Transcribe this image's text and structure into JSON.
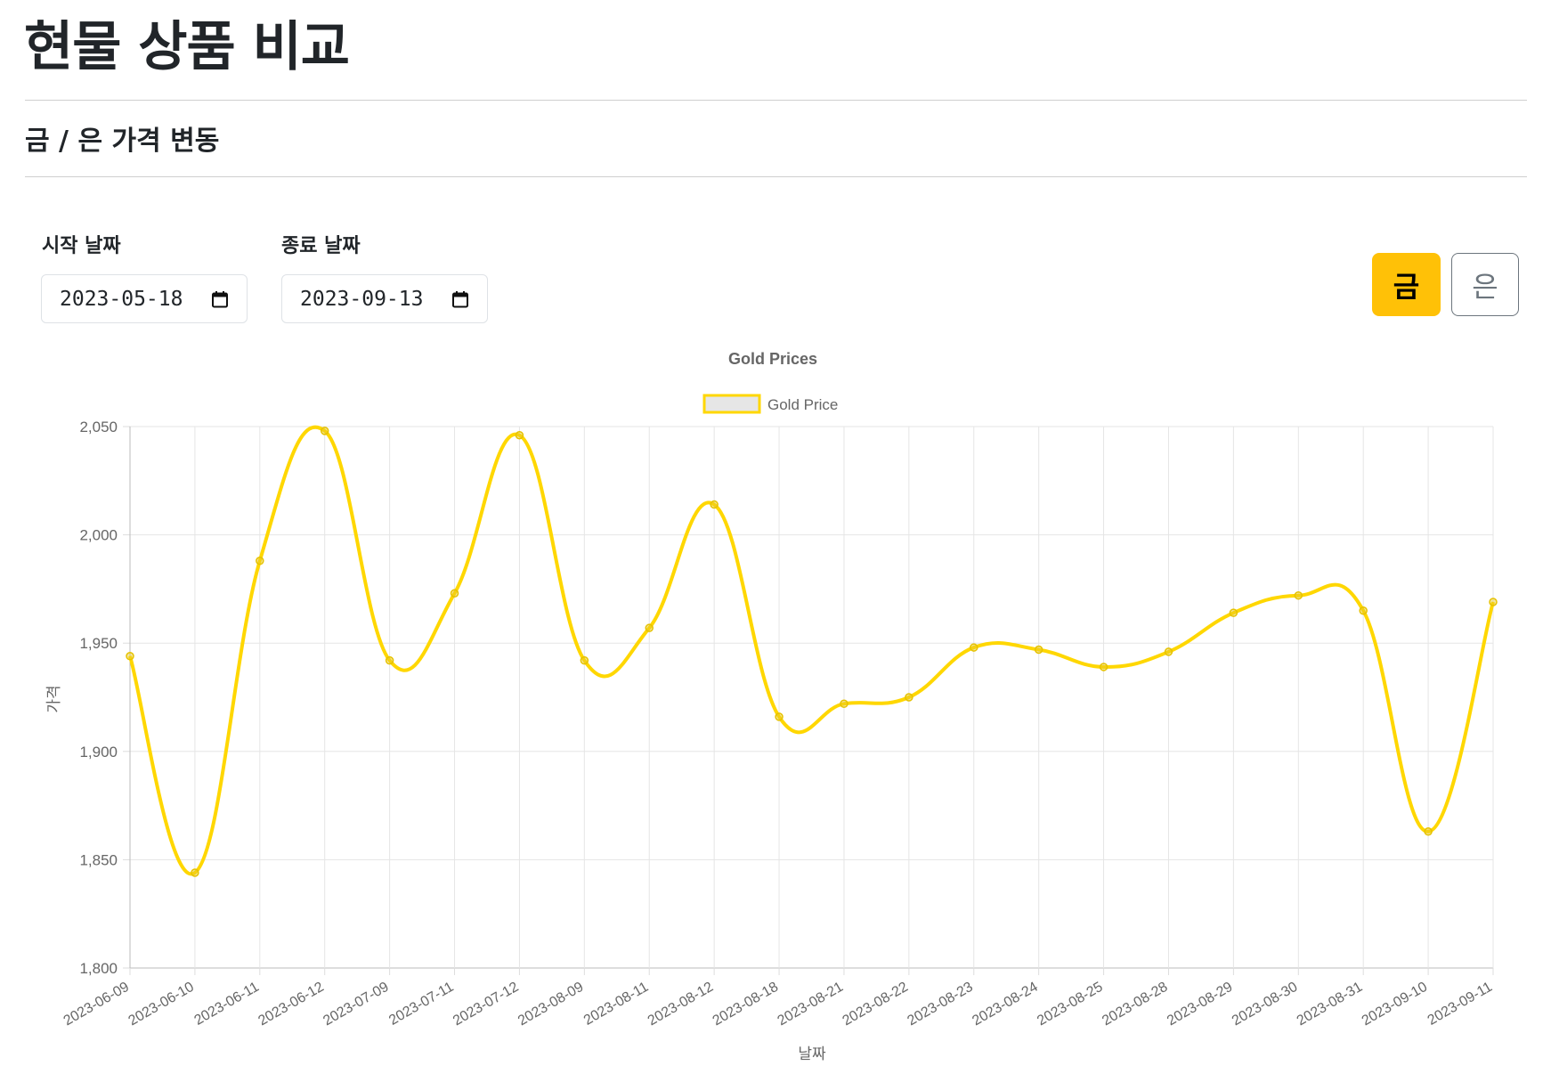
{
  "page": {
    "title": "현물 상품 비교"
  },
  "section": {
    "title": "금 / 은 가격 변동"
  },
  "filters": {
    "start_label": "시작 날짜",
    "start_value": "2023-05-18",
    "end_label": "종료 날짜",
    "end_value": "2023-09-13"
  },
  "toggle": {
    "gold_label": "금",
    "silver_label": "은",
    "selected": "금",
    "gold_color": "#ffc107"
  },
  "chart_data": {
    "type": "line",
    "title": "Gold Prices",
    "xlabel": "날짜",
    "ylabel": "가격",
    "legend": "top-center",
    "grid": true,
    "ylim": [
      1800,
      2050
    ],
    "yticks": [
      "1,800",
      "1,850",
      "1,900",
      "1,950",
      "2,000",
      "2,050"
    ],
    "categories": [
      "2023-06-09",
      "2023-06-10",
      "2023-06-11",
      "2023-06-12",
      "2023-07-09",
      "2023-07-11",
      "2023-07-12",
      "2023-08-09",
      "2023-08-11",
      "2023-08-12",
      "2023-08-18",
      "2023-08-21",
      "2023-08-22",
      "2023-08-23",
      "2023-08-24",
      "2023-08-25",
      "2023-08-28",
      "2023-08-29",
      "2023-08-30",
      "2023-08-31",
      "2023-09-10",
      "2023-09-11"
    ],
    "series": [
      {
        "name": "Gold Price",
        "color": "#ffd700",
        "values": [
          1944,
          1844,
          1988,
          2048,
          1942,
          1973,
          2046,
          1942,
          1957,
          2014,
          1916,
          1922,
          1925,
          1948,
          1947,
          1939,
          1946,
          1964,
          1972,
          1965,
          1863,
          1969
        ]
      }
    ]
  }
}
